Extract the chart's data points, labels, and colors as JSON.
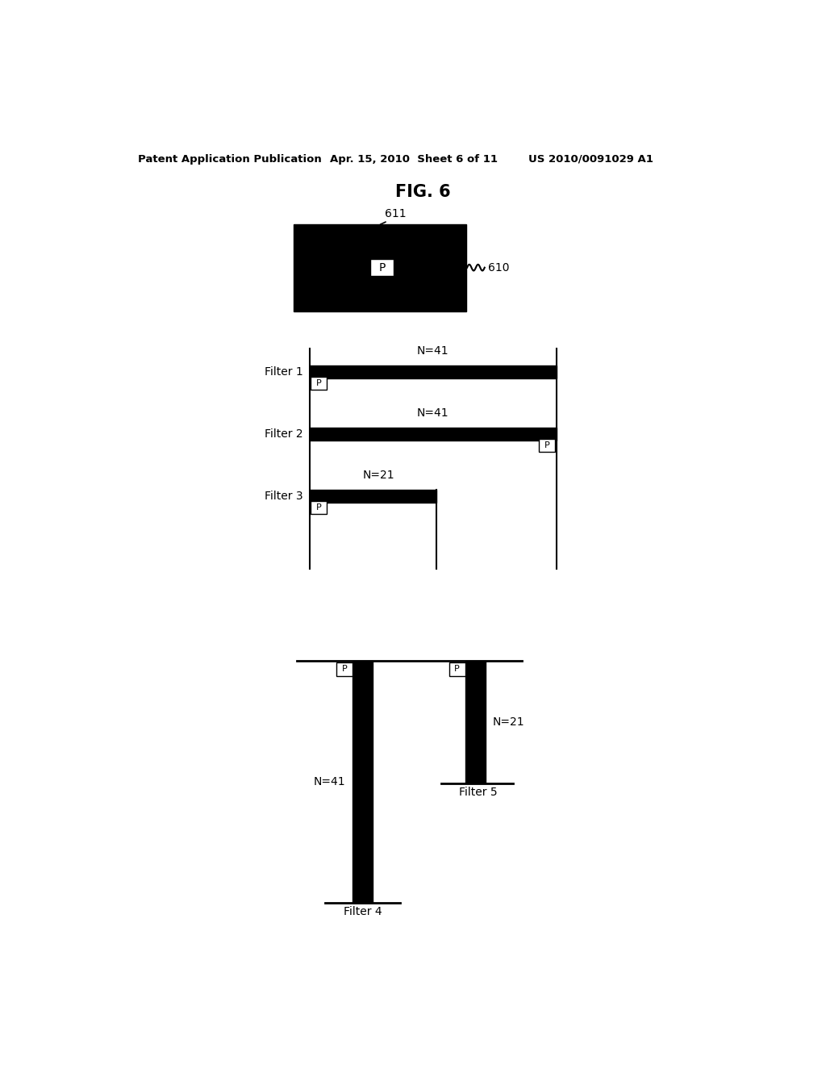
{
  "bg_color": "#ffffff",
  "header_left": "Patent Application Publication",
  "header_mid": "Apr. 15, 2010  Sheet 6 of 11",
  "header_right": "US 2010/0091029 A1",
  "fig_title": "FIG. 6"
}
